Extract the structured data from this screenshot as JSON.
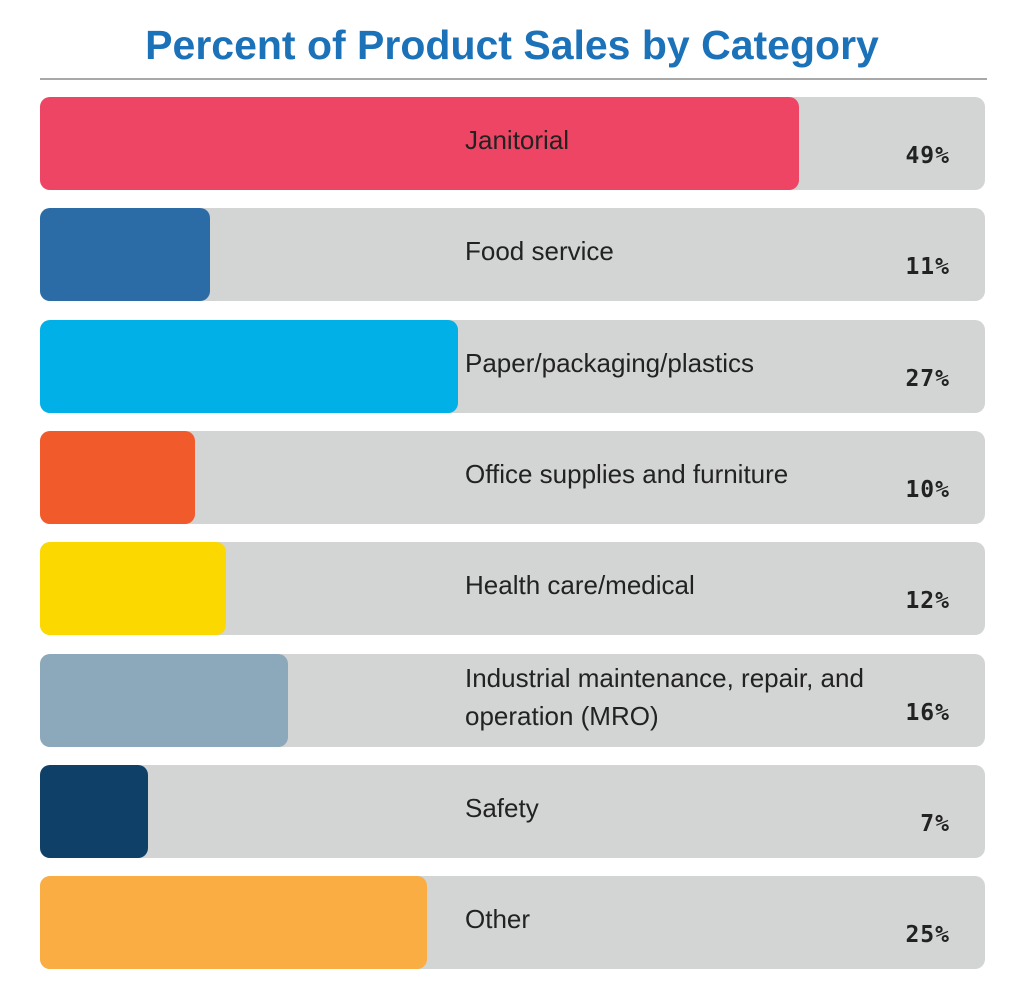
{
  "chart_data": {
    "type": "bar",
    "orientation": "horizontal",
    "title": "Percent of Product Sales by Category",
    "categories": [
      "Janitorial",
      "Food service",
      "Paper/packaging/plastics",
      "Office supplies and furniture",
      "Health care/medical",
      "Industrial maintenance, repair, and operation (MRO)",
      "Safety",
      "Other"
    ],
    "values": [
      49,
      11,
      27,
      10,
      12,
      16,
      7,
      25
    ],
    "value_labels": [
      "49%",
      "11%",
      "27%",
      "10%",
      "12%",
      "16%",
      "7%",
      "25%"
    ],
    "colors": [
      "#ee4564",
      "#2b6ca6",
      "#00b0e6",
      "#f15a2b",
      "#fbd900",
      "#8ca8bb",
      "#0f4168",
      "#f9ad42"
    ],
    "xlim": [
      0,
      61
    ]
  }
}
